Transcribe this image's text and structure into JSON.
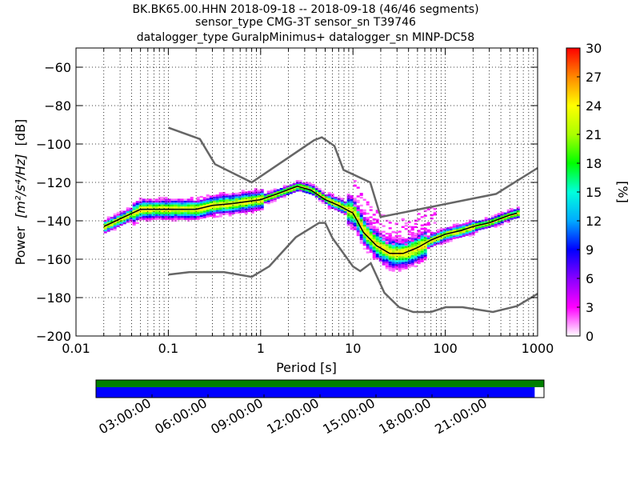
{
  "title": {
    "line1": "BK.BK65.00.HHN   2018-09-18 -- 2018-09-18  (46/46 segments)",
    "line2": "sensor_type CMG-3T sensor_sn T39746",
    "line3": "datalogger_type GuralpMinimus+ datalogger_sn MINP-DC58"
  },
  "axes": {
    "ylabel_prefix": "Power",
    "ylabel_units": "[m²/s⁴/Hz]",
    "ylabel_suffix": "[dB]",
    "xlabel": "Period [s]",
    "cbar_label": "[%]"
  },
  "chart_data": {
    "type": "heatmap",
    "x_scale": "log",
    "xlim": [
      0.01,
      1000
    ],
    "ylim": [
      -200,
      -50
    ],
    "grid": true,
    "x_ticks": [
      {
        "value": 0.01,
        "label": "0.01"
      },
      {
        "value": 0.1,
        "label": "0.1"
      },
      {
        "value": 1,
        "label": "1"
      },
      {
        "value": 10,
        "label": "10"
      },
      {
        "value": 100,
        "label": "100"
      },
      {
        "value": 1000,
        "label": "1000"
      }
    ],
    "y_ticks": [
      {
        "value": -60,
        "label": "−60"
      },
      {
        "value": -80,
        "label": "−80"
      },
      {
        "value": -100,
        "label": "−100"
      },
      {
        "value": -120,
        "label": "−120"
      },
      {
        "value": -140,
        "label": "−140"
      },
      {
        "value": -160,
        "label": "−160"
      },
      {
        "value": -180,
        "label": "−180"
      },
      {
        "value": -200,
        "label": "−200"
      }
    ],
    "colorbar": {
      "range": [
        0,
        30
      ],
      "ticks": [
        {
          "value": 0,
          "label": "0"
        },
        {
          "value": 3,
          "label": "3"
        },
        {
          "value": 6,
          "label": "6"
        },
        {
          "value": 9,
          "label": "9"
        },
        {
          "value": 12,
          "label": "12"
        },
        {
          "value": 15,
          "label": "15"
        },
        {
          "value": 18,
          "label": "18"
        },
        {
          "value": 21,
          "label": "21"
        },
        {
          "value": 24,
          "label": "24"
        },
        {
          "value": 27,
          "label": "27"
        },
        {
          "value": 30,
          "label": "30"
        }
      ],
      "colors": [
        "#ffffff",
        "#ff00ff",
        "#8800ff",
        "#0000ff",
        "#00aaff",
        "#00ffdd",
        "#00ff00",
        "#aaff00",
        "#ffff00",
        "#ff8800",
        "#ff0000"
      ]
    },
    "nhnm": {
      "name": "NHNM",
      "x": [
        0.1,
        0.22,
        0.32,
        0.8,
        3.8,
        4.6,
        6.3,
        7.9,
        15.4,
        20,
        354.8,
        1000
      ],
      "y": [
        -91.5,
        -97.4,
        -110.5,
        -120,
        -98,
        -96.5,
        -101,
        -113.5,
        -120,
        -138,
        -126,
        -112.5
      ]
    },
    "nlnm": {
      "name": "NLNM",
      "x": [
        0.1,
        0.17,
        0.4,
        0.8,
        1.24,
        2.4,
        4.3,
        5,
        6,
        10,
        12,
        15.6,
        21.9,
        31.6,
        45,
        70,
        101,
        154,
        328,
        600,
        1000
      ],
      "y": [
        -168,
        -166.7,
        -166.7,
        -169.2,
        -163.7,
        -148.6,
        -141.1,
        -141.1,
        -149,
        -163.8,
        -166.2,
        -162.1,
        -177.5,
        -185,
        -187.5,
        -187.5,
        -185,
        -185,
        -187.5,
        -184.4,
        -178
      ]
    },
    "mode": {
      "name": "mode",
      "x": [
        0.02,
        0.03,
        0.05,
        0.1,
        0.2,
        0.3,
        0.5,
        1,
        1.5,
        2.5,
        3.5,
        5,
        7,
        10,
        13,
        18,
        25,
        35,
        50,
        70,
        100,
        150,
        200,
        300,
        500,
        600
      ],
      "y": [
        -143,
        -139,
        -134,
        -134,
        -134,
        -132,
        -131,
        -129,
        -126,
        -122,
        -124,
        -129,
        -132,
        -136,
        -146,
        -153,
        -157,
        -157,
        -154,
        -150,
        -147,
        -145,
        -143,
        -141,
        -137,
        -136
      ]
    },
    "time_axis": {
      "labels": [
        "03:00:00",
        "06:00:00",
        "09:00:00",
        "12:00:00",
        "15:00:00",
        "18:00:00",
        "21:00:00"
      ],
      "range_hours": [
        0,
        24
      ],
      "label_hours": [
        3,
        6,
        9,
        12,
        15,
        18,
        21
      ],
      "green_coverage_hours": [
        0,
        24
      ],
      "blue_coverage_hours": [
        0,
        23.5
      ],
      "green_color": "#008000",
      "blue_color": "#0000ff"
    }
  }
}
